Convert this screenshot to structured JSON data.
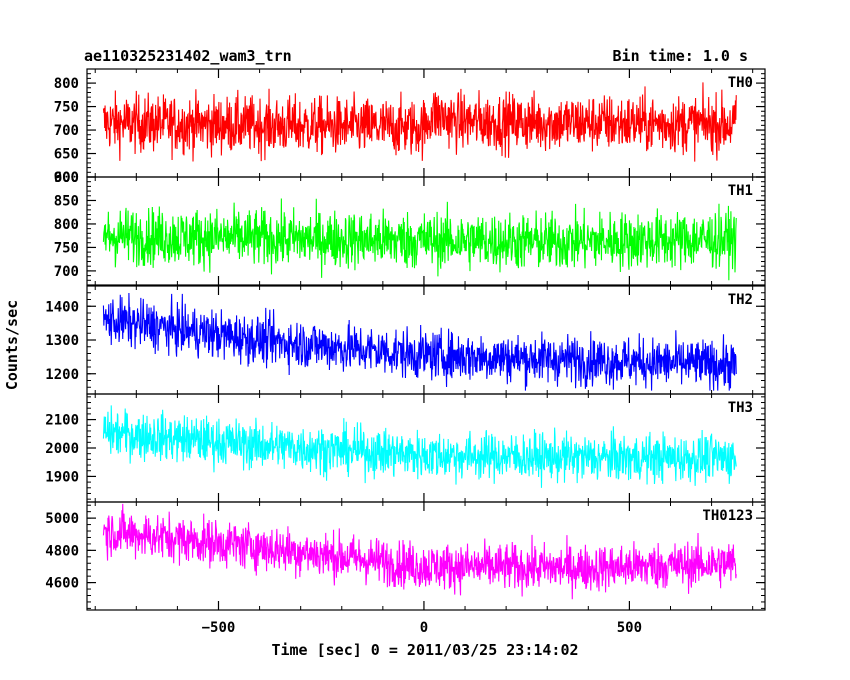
{
  "header": {
    "title": "ae110325231402_wam3_trn",
    "bin_time": "Bin time: 1.0 s"
  },
  "chart_data": {
    "type": "line",
    "title": "ae110325231402_wam3_trn",
    "subtitle": "Bin time: 1.0 s",
    "xlabel": "Time [sec] 0 = 2011/03/25 23:14:02",
    "ylabel": "Counts/sec",
    "xlim": [
      -820,
      830
    ],
    "x_ticks": [
      -500,
      0,
      500
    ],
    "x_tick_labels": [
      "−500",
      "0",
      "500"
    ],
    "x_range": [
      -780,
      760
    ],
    "bin_seconds": 1.0,
    "grid": false,
    "legend": "none",
    "panels": [
      {
        "label": "TH0",
        "color": "#ff0000",
        "ylim": [
          600,
          830
        ],
        "yticks": [
          600,
          650,
          700,
          750,
          800
        ],
        "series": {
          "mean_profile": [
            [
              -780,
              715
            ],
            [
              0,
              705
            ],
            [
              20,
              735
            ],
            [
              80,
              718
            ],
            [
              760,
              712
            ]
          ],
          "noise_halfwidth": 55,
          "min_approx": 610,
          "max_approx": 825
        }
      },
      {
        "label": "TH1",
        "color": "#00ff00",
        "ylim": [
          670,
          900
        ],
        "yticks": [
          700,
          750,
          800,
          850,
          900
        ],
        "series": {
          "mean_profile": [
            [
              -780,
              775
            ],
            [
              -300,
              768
            ],
            [
              300,
              762
            ],
            [
              760,
              768
            ]
          ],
          "noise_halfwidth": 55,
          "min_approx": 680,
          "max_approx": 900
        }
      },
      {
        "label": "TH2",
        "color": "#0000ff",
        "ylim": [
          1140,
          1460
        ],
        "yticks": [
          1200,
          1300,
          1400
        ],
        "series": {
          "mean_profile": [
            [
              -780,
              1360
            ],
            [
              -400,
              1300
            ],
            [
              0,
              1255
            ],
            [
              400,
              1240
            ],
            [
              760,
              1225
            ]
          ],
          "noise_halfwidth": 65,
          "min_approx": 1150,
          "max_approx": 1460
        }
      },
      {
        "label": "TH3",
        "color": "#00ffff",
        "ylim": [
          1810,
          2190
        ],
        "yticks": [
          1900,
          2000,
          2100
        ],
        "series": {
          "mean_profile": [
            [
              -780,
              2055
            ],
            [
              -400,
              2010
            ],
            [
              0,
              1975
            ],
            [
              400,
              1965
            ],
            [
              760,
              1965
            ]
          ],
          "noise_halfwidth": 75,
          "min_approx": 1830,
          "max_approx": 2190
        }
      },
      {
        "label": "TH0123",
        "color": "#ff00ff",
        "ylim": [
          4430,
          5100
        ],
        "yticks": [
          4600,
          4800,
          5000
        ],
        "series": {
          "mean_profile": [
            [
              -780,
              4920
            ],
            [
              -400,
              4820
            ],
            [
              0,
              4700
            ],
            [
              400,
              4690
            ],
            [
              760,
              4720
            ]
          ],
          "noise_halfwidth": 130,
          "min_approx": 4460,
          "max_approx": 5090
        }
      }
    ]
  }
}
